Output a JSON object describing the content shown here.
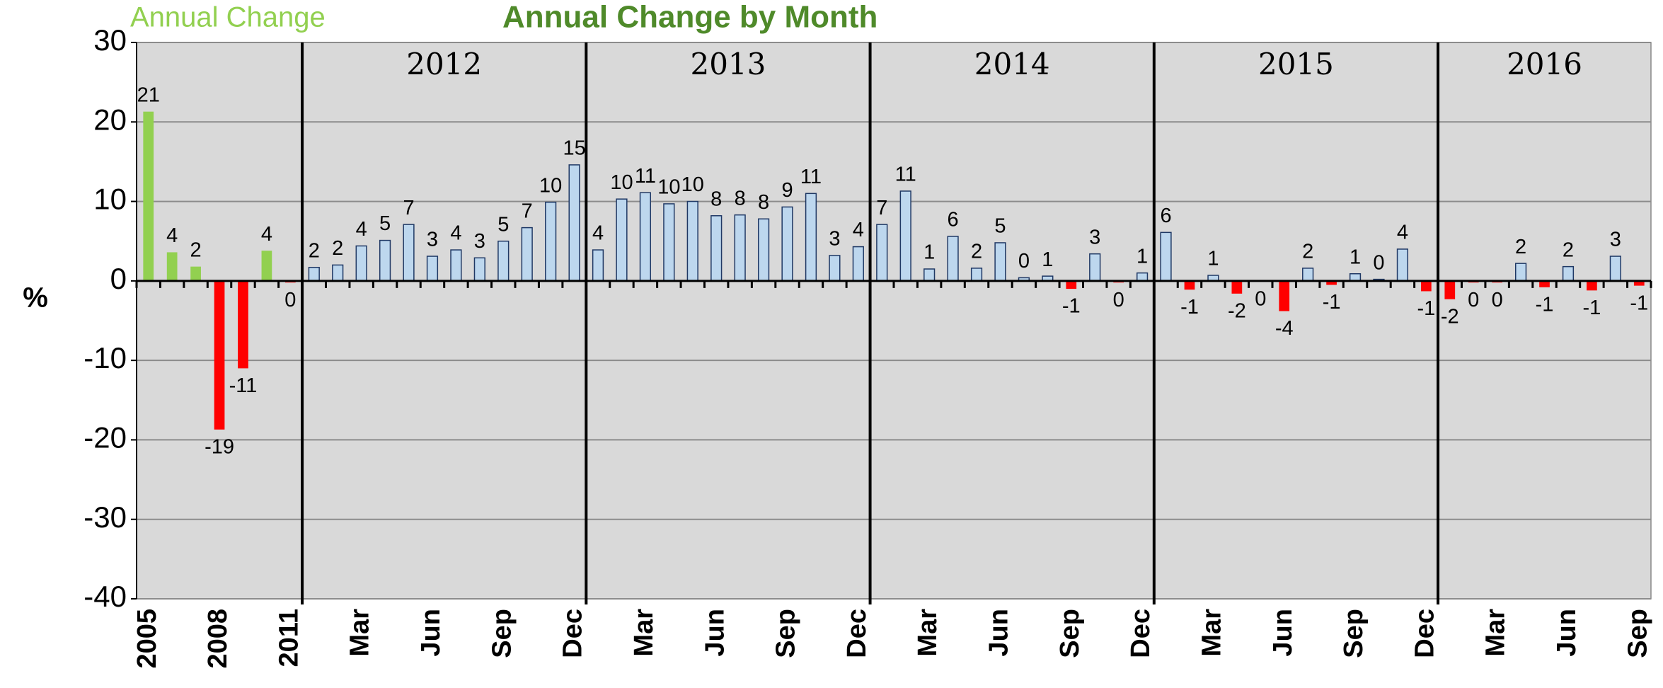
{
  "chart_data": {
    "type": "bar",
    "y_label": "%",
    "ylim": [
      -40,
      30
    ],
    "yticks": [
      -40,
      -30,
      -20,
      -10,
      0,
      10,
      20,
      30
    ],
    "grid": true,
    "negative_color": "#ff0000",
    "year_labels": [
      "2012",
      "2013",
      "2014",
      "2015",
      "2016"
    ],
    "categories": [
      "2005",
      null,
      null,
      "2008",
      null,
      null,
      "2011",
      null,
      null,
      "Mar",
      null,
      null,
      "Jun",
      null,
      null,
      "Sep",
      null,
      null,
      "Dec",
      null,
      null,
      "Mar",
      null,
      null,
      "Jun",
      null,
      null,
      "Sep",
      null,
      null,
      "Dec",
      null,
      null,
      "Mar",
      null,
      null,
      "Jun",
      null,
      null,
      "Sep",
      null,
      null,
      "Dec",
      null,
      null,
      "Mar",
      null,
      null,
      "Jun",
      null,
      null,
      "Sep",
      null,
      null,
      "Dec",
      null,
      null,
      "Mar",
      null,
      null,
      "Jun",
      null,
      null,
      "Sep"
    ],
    "series": [
      {
        "name": "Annual Change",
        "color": "#92d050",
        "name_color": "#92d050",
        "values": [
          21.3,
          3.6,
          1.8,
          -18.7,
          -11.0,
          3.8,
          -0.2,
          null,
          null,
          null,
          null,
          null,
          null,
          null,
          null,
          null,
          null,
          null,
          null,
          null,
          null,
          null,
          null,
          null,
          null,
          null,
          null,
          null,
          null,
          null,
          null,
          null,
          null,
          null,
          null,
          null,
          null,
          null,
          null,
          null,
          null,
          null,
          null,
          null,
          null,
          null,
          null,
          null,
          null,
          null,
          null,
          null,
          null,
          null,
          null,
          null,
          null,
          null,
          null,
          null,
          null,
          null,
          null,
          null
        ],
        "value_labels": [
          "21",
          "4",
          "2",
          "-19",
          "-11",
          "4",
          "0",
          null,
          null,
          null,
          null,
          null,
          null,
          null,
          null,
          null,
          null,
          null,
          null,
          null,
          null,
          null,
          null,
          null,
          null,
          null,
          null,
          null,
          null,
          null,
          null,
          null,
          null,
          null,
          null,
          null,
          null,
          null,
          null,
          null,
          null,
          null,
          null,
          null,
          null,
          null,
          null,
          null,
          null,
          null,
          null,
          null,
          null,
          null,
          null,
          null,
          null,
          null,
          null,
          null,
          null,
          null,
          null,
          null
        ]
      },
      {
        "name": "Annual Change by Month",
        "color": "#bdd7ee",
        "name_color": "#4f8a2a",
        "values": [
          null,
          null,
          null,
          null,
          null,
          null,
          null,
          1.7,
          2.0,
          4.4,
          5.1,
          7.1,
          3.1,
          3.9,
          2.9,
          5.0,
          6.7,
          9.9,
          14.6,
          3.9,
          10.3,
          11.1,
          9.7,
          10.0,
          8.2,
          8.3,
          7.8,
          9.3,
          11.0,
          3.2,
          4.3,
          7.1,
          11.3,
          1.5,
          5.6,
          1.6,
          4.8,
          0.4,
          0.6,
          -1.0,
          3.4,
          -0.2,
          1.0,
          6.1,
          -1.1,
          0.7,
          -1.6,
          -0.1,
          -3.8,
          1.6,
          -0.5,
          0.9,
          0.2,
          4.0,
          -1.3,
          -2.3,
          -0.2,
          -0.2,
          2.2,
          -0.8,
          1.8,
          -1.2,
          3.1,
          -0.6
        ],
        "value_labels": [
          null,
          null,
          null,
          null,
          null,
          null,
          null,
          "2",
          "2",
          "4",
          "5",
          "7",
          "3",
          "4",
          "3",
          "5",
          "7",
          "10",
          "15",
          "4",
          "10",
          "11",
          "10",
          "10",
          "8",
          "8",
          "8",
          "9",
          "11",
          "3",
          "4",
          "7",
          "11",
          "1",
          "6",
          "2",
          "5",
          "0",
          "1",
          "-1",
          "3",
          "0",
          "1",
          "6",
          "-1",
          "1",
          "-2",
          "0",
          "-4",
          "2",
          "-1",
          "1",
          "0",
          "4",
          "-1",
          "-2",
          "0",
          "0",
          "2",
          "-1",
          "2",
          "-1",
          "3",
          "-1"
        ]
      }
    ]
  }
}
